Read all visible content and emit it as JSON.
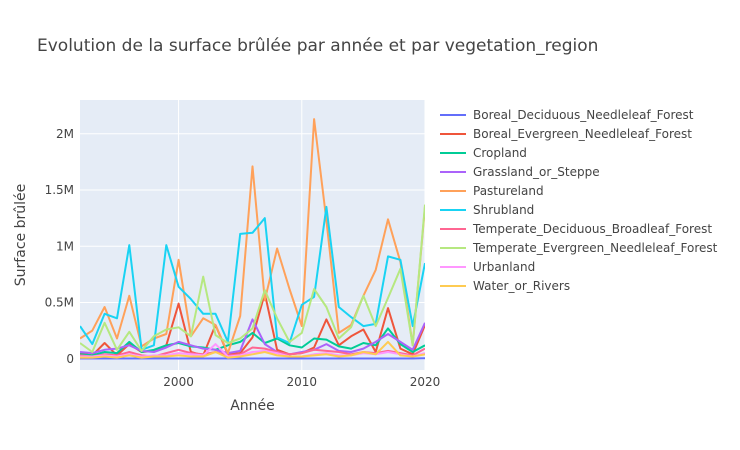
{
  "chart_data": {
    "type": "line",
    "title": "Evolution de la surface brûlée par année et par vegetation_region",
    "xlabel": "Année",
    "ylabel": "Surface brûlée",
    "xlim": [
      1992,
      2020
    ],
    "ylim": [
      -100000,
      2300000
    ],
    "x_ticks": [
      2000,
      2010,
      2020
    ],
    "y_ticks": [
      0,
      500000,
      1000000,
      1500000,
      2000000
    ],
    "y_tick_labels": [
      "0",
      "0.5M",
      "1M",
      "1.5M",
      "2M"
    ],
    "x": [
      1992,
      1993,
      1994,
      1995,
      1996,
      1997,
      1998,
      1999,
      2000,
      2001,
      2002,
      2003,
      2004,
      2005,
      2006,
      2007,
      2008,
      2009,
      2010,
      2011,
      2012,
      2013,
      2014,
      2015,
      2016,
      2017,
      2018,
      2019,
      2020
    ],
    "legend_position": "right",
    "series": [
      {
        "name": "Boreal_Deciduous_Needleleaf_Forest",
        "color": "#636efa",
        "values": [
          2000,
          2000,
          2000,
          2000,
          2000,
          2000,
          2000,
          2000,
          2000,
          2000,
          2000,
          2000,
          2000,
          2000,
          2000,
          2000,
          2000,
          2000,
          2000,
          2000,
          2000,
          2000,
          2000,
          2000,
          2000,
          2000,
          2000,
          2000,
          5000
        ]
      },
      {
        "name": "Boreal_Evergreen_Needleleaf_Forest",
        "color": "#ef553b",
        "values": [
          50000,
          30000,
          140000,
          30000,
          130000,
          60000,
          70000,
          120000,
          490000,
          60000,
          30000,
          300000,
          40000,
          50000,
          190000,
          580000,
          80000,
          40000,
          50000,
          100000,
          350000,
          120000,
          200000,
          260000,
          60000,
          450000,
          90000,
          40000,
          300000
        ]
      },
      {
        "name": "Cropland",
        "color": "#00cc96",
        "values": [
          40000,
          30000,
          60000,
          50000,
          150000,
          60000,
          80000,
          120000,
          140000,
          110000,
          100000,
          80000,
          120000,
          150000,
          230000,
          140000,
          180000,
          120000,
          100000,
          180000,
          170000,
          110000,
          90000,
          140000,
          120000,
          270000,
          130000,
          60000,
          120000
        ]
      },
      {
        "name": "Grassland_or_Steppe",
        "color": "#ab63fa",
        "values": [
          60000,
          50000,
          80000,
          90000,
          120000,
          70000,
          60000,
          100000,
          150000,
          120000,
          90000,
          80000,
          50000,
          70000,
          350000,
          130000,
          60000,
          40000,
          60000,
          80000,
          130000,
          70000,
          60000,
          90000,
          150000,
          220000,
          150000,
          80000,
          320000
        ]
      },
      {
        "name": "Pastureland",
        "color": "#ffa15a",
        "values": [
          180000,
          250000,
          460000,
          180000,
          560000,
          110000,
          180000,
          220000,
          880000,
          200000,
          360000,
          300000,
          50000,
          380000,
          1710000,
          520000,
          980000,
          620000,
          290000,
          2130000,
          1230000,
          230000,
          300000,
          560000,
          790000,
          1240000,
          860000,
          120000,
          1350000
        ]
      },
      {
        "name": "Shrubland",
        "color": "#19d3f3",
        "values": [
          290000,
          130000,
          400000,
          360000,
          1010000,
          80000,
          120000,
          1010000,
          640000,
          530000,
          400000,
          400000,
          150000,
          1110000,
          1120000,
          1250000,
          190000,
          140000,
          480000,
          550000,
          1350000,
          460000,
          370000,
          290000,
          310000,
          910000,
          880000,
          290000,
          850000
        ]
      },
      {
        "name": "Temperate_Deciduous_Broadleaf_Forest",
        "color": "#ff6692",
        "values": [
          30000,
          20000,
          40000,
          30000,
          60000,
          30000,
          20000,
          50000,
          80000,
          50000,
          40000,
          60000,
          30000,
          40000,
          100000,
          90000,
          60000,
          40000,
          50000,
          80000,
          70000,
          60000,
          40000,
          60000,
          50000,
          70000,
          50000,
          30000,
          90000
        ]
      },
      {
        "name": "Temperate_Evergreen_Needleleaf_Forest",
        "color": "#b6e880",
        "values": [
          140000,
          60000,
          320000,
          80000,
          240000,
          70000,
          200000,
          260000,
          280000,
          200000,
          730000,
          210000,
          140000,
          180000,
          270000,
          610000,
          360000,
          150000,
          230000,
          620000,
          460000,
          180000,
          280000,
          560000,
          290000,
          540000,
          800000,
          120000,
          1370000
        ]
      },
      {
        "name": "Urbanland",
        "color": "#ff97ff",
        "values": [
          20000,
          20000,
          30000,
          20000,
          40000,
          20000,
          30000,
          30000,
          50000,
          40000,
          30000,
          130000,
          20000,
          30000,
          60000,
          70000,
          50000,
          20000,
          20000,
          40000,
          50000,
          30000,
          30000,
          50000,
          40000,
          60000,
          40000,
          20000,
          50000
        ]
      },
      {
        "name": "Water_or_Rivers",
        "color": "#fecb52",
        "values": [
          10000,
          10000,
          20000,
          10000,
          30000,
          10000,
          20000,
          20000,
          30000,
          20000,
          20000,
          60000,
          10000,
          20000,
          40000,
          60000,
          30000,
          20000,
          20000,
          30000,
          40000,
          20000,
          30000,
          60000,
          40000,
          150000,
          30000,
          20000,
          40000
        ]
      }
    ]
  }
}
